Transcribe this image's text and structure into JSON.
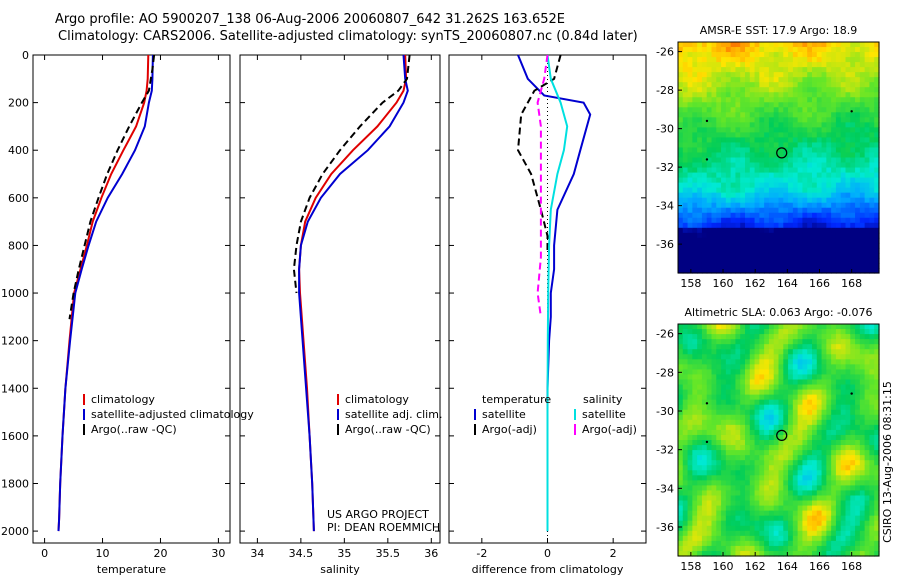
{
  "header": {
    "line1": "Argo profile: AO 5900207_138 06-Aug-2006 20060807_642 31.262S 163.652E",
    "line2": "Climatology: CARS2006. Satellite-adjusted climatology: synTS_20060807.nc (0.84d later)"
  },
  "credit": {
    "line1": "US ARGO PROJECT",
    "line2": "PI: DEAN ROEMMICH"
  },
  "side_stamp": "CSIRO 13-Aug-2006 08:31:15",
  "colors": {
    "climatology": "#e00000",
    "satellite": "#0000d0",
    "argo": "#000000",
    "sat_salinity": "#00e0e0",
    "argo_adj_salinity": "#ff00ff"
  },
  "chart_data": [
    {
      "type": "line",
      "xlabel": "temperature",
      "xlim": [
        -2,
        32
      ],
      "xticks": [
        0,
        10,
        20,
        30
      ],
      "ylim": [
        2050,
        0
      ],
      "yticks": [
        0,
        200,
        400,
        600,
        800,
        1000,
        1200,
        1400,
        1600,
        1800,
        2000
      ],
      "legend": [
        "climatology",
        "satellite-adjusted climatology",
        "Argo(..raw -QC)"
      ],
      "series": [
        {
          "name": "climatology",
          "color": "#e00000",
          "dash": "",
          "x": [
            17.9,
            17.8,
            17.6,
            17.2,
            15.8,
            13.6,
            11.5,
            9.8,
            8.3,
            7.3,
            6.2,
            5.1,
            4.3,
            3.6,
            3.1,
            2.7,
            2.5,
            2.4
          ],
          "y": [
            0,
            100,
            150,
            200,
            300,
            400,
            500,
            600,
            700,
            800,
            900,
            1000,
            1200,
            1400,
            1600,
            1800,
            1950,
            2000
          ]
        },
        {
          "name": "satellite-adjusted climatology",
          "color": "#0000d0",
          "dash": "",
          "x": [
            18.7,
            18.6,
            18.5,
            18.0,
            17.3,
            15.6,
            13.4,
            10.9,
            8.9,
            7.6,
            6.4,
            5.3,
            4.4,
            3.6,
            3.1,
            2.7,
            2.5,
            2.4
          ],
          "y": [
            0,
            100,
            150,
            200,
            300,
            400,
            500,
            600,
            700,
            800,
            900,
            1000,
            1200,
            1400,
            1600,
            1800,
            1950,
            2000
          ]
        },
        {
          "name": "Argo(..raw -QC)",
          "color": "#000000",
          "dash": "7,4",
          "x": [
            18.9,
            18.6,
            18.0,
            16.8,
            14.6,
            12.6,
            10.8,
            9.3,
            7.9,
            6.9,
            5.9,
            5.0,
            4.3
          ],
          "y": [
            0,
            60,
            150,
            200,
            300,
            400,
            500,
            600,
            700,
            800,
            900,
            1000,
            1110
          ]
        }
      ]
    },
    {
      "type": "line",
      "xlabel": "salinity",
      "xlim": [
        33.8,
        36.1
      ],
      "xticks": [
        34,
        34.5,
        35,
        35.5,
        36
      ],
      "xticklabels": [
        "34",
        "34.5",
        "35",
        "35.5",
        "36"
      ],
      "ylim": [
        2050,
        0
      ],
      "legend": [
        "climatology",
        "satellite adj. clim.",
        "Argo(..raw -QC)"
      ],
      "series": [
        {
          "name": "climatology",
          "color": "#e00000",
          "dash": "",
          "x": [
            35.7,
            35.71,
            35.68,
            35.6,
            35.38,
            35.1,
            34.85,
            34.67,
            34.55,
            34.5,
            34.48,
            34.49,
            34.53,
            34.57,
            34.6,
            34.63,
            34.65
          ],
          "y": [
            0,
            100,
            150,
            200,
            300,
            400,
            500,
            600,
            700,
            800,
            900,
            1000,
            1200,
            1400,
            1600,
            1800,
            2000
          ]
        },
        {
          "name": "satellite adj. clim.",
          "color": "#0000d0",
          "dash": "",
          "x": [
            35.68,
            35.7,
            35.73,
            35.68,
            35.52,
            35.27,
            34.95,
            34.73,
            34.58,
            34.5,
            34.48,
            34.48,
            34.52,
            34.56,
            34.6,
            34.63,
            34.65
          ],
          "y": [
            0,
            100,
            150,
            200,
            300,
            400,
            500,
            600,
            700,
            800,
            900,
            1000,
            1200,
            1400,
            1600,
            1800,
            2000
          ]
        },
        {
          "name": "Argo(..raw -QC)",
          "color": "#000000",
          "dash": "7,4",
          "x": [
            35.75,
            35.72,
            35.62,
            35.44,
            35.18,
            34.95,
            34.75,
            34.6,
            34.5,
            34.45,
            34.42,
            34.45
          ],
          "y": [
            0,
            100,
            150,
            200,
            300,
            400,
            500,
            600,
            700,
            800,
            900,
            1000
          ]
        }
      ]
    },
    {
      "type": "line",
      "xlabel": "difference from climatology",
      "xlim": [
        -3,
        3
      ],
      "xticks": [
        -2,
        0,
        2
      ],
      "ylim": [
        2050,
        0
      ],
      "legend_left_title": "temperature",
      "legend_right_title": "salinity",
      "legend": [
        "satellite",
        "Argo(-adj)",
        "satellite",
        "Argo(-adj)"
      ],
      "series": [
        {
          "name": "temperature satellite",
          "color": "#0000d0",
          "dash": "",
          "x": [
            -0.9,
            -0.6,
            -0.1,
            1.1,
            1.3,
            1.0,
            0.8,
            0.3,
            0.2,
            0.2,
            0.1,
            0.1,
            0.05,
            0,
            0,
            0,
            0,
            0
          ],
          "y": [
            0,
            100,
            170,
            200,
            250,
            400,
            500,
            650,
            800,
            900,
            1000,
            1100,
            1200,
            1400,
            1600,
            1800,
            1950,
            2000
          ]
        },
        {
          "name": "temperature Argo(-adj)",
          "color": "#000000",
          "dash": "7,4",
          "x": [
            0.4,
            0.2,
            -0.4,
            -0.8,
            -0.9,
            -0.5,
            -0.2,
            0.0,
            0.0
          ],
          "y": [
            0,
            100,
            150,
            250,
            400,
            500,
            650,
            760,
            830
          ]
        },
        {
          "name": "salinity satellite",
          "color": "#00e0e0",
          "dash": "",
          "x": [
            0.0,
            0.1,
            0.4,
            0.6,
            0.5,
            0.3,
            0.1,
            0.05,
            0.02,
            0.01,
            0.0,
            0.0,
            0.0
          ],
          "y": [
            0,
            100,
            200,
            300,
            400,
            500,
            650,
            800,
            1000,
            1200,
            1500,
            1800,
            2000
          ]
        },
        {
          "name": "salinity Argo(-adj)",
          "color": "#ff00ff",
          "dash": "7,4",
          "x": [
            0.0,
            -0.1,
            -0.3,
            -0.2,
            -0.2,
            -0.2,
            -0.2,
            -0.3,
            -0.2
          ],
          "y": [
            0,
            100,
            200,
            300,
            500,
            700,
            850,
            1000,
            1100
          ]
        }
      ]
    },
    {
      "type": "heatmap",
      "title": "AMSR-E SST: 17.9 Argo: 18.9",
      "xlim": [
        157.2,
        169.7
      ],
      "ylim": [
        -37.5,
        -25.5
      ],
      "xticks": [
        158,
        160,
        162,
        164,
        166,
        168
      ],
      "yticks": [
        -26,
        -28,
        -30,
        -32,
        -34,
        -36
      ],
      "marker": {
        "lon": 163.65,
        "lat": -31.26
      }
    },
    {
      "type": "heatmap",
      "title": "Altimetric SLA: 0.063 Argo: -0.076",
      "xlim": [
        157.2,
        169.7
      ],
      "ylim": [
        -37.5,
        -25.5
      ],
      "xticks": [
        158,
        160,
        162,
        164,
        166,
        168
      ],
      "yticks": [
        -26,
        -28,
        -30,
        -32,
        -34,
        -36
      ],
      "marker": {
        "lon": 163.65,
        "lat": -31.26
      }
    }
  ]
}
